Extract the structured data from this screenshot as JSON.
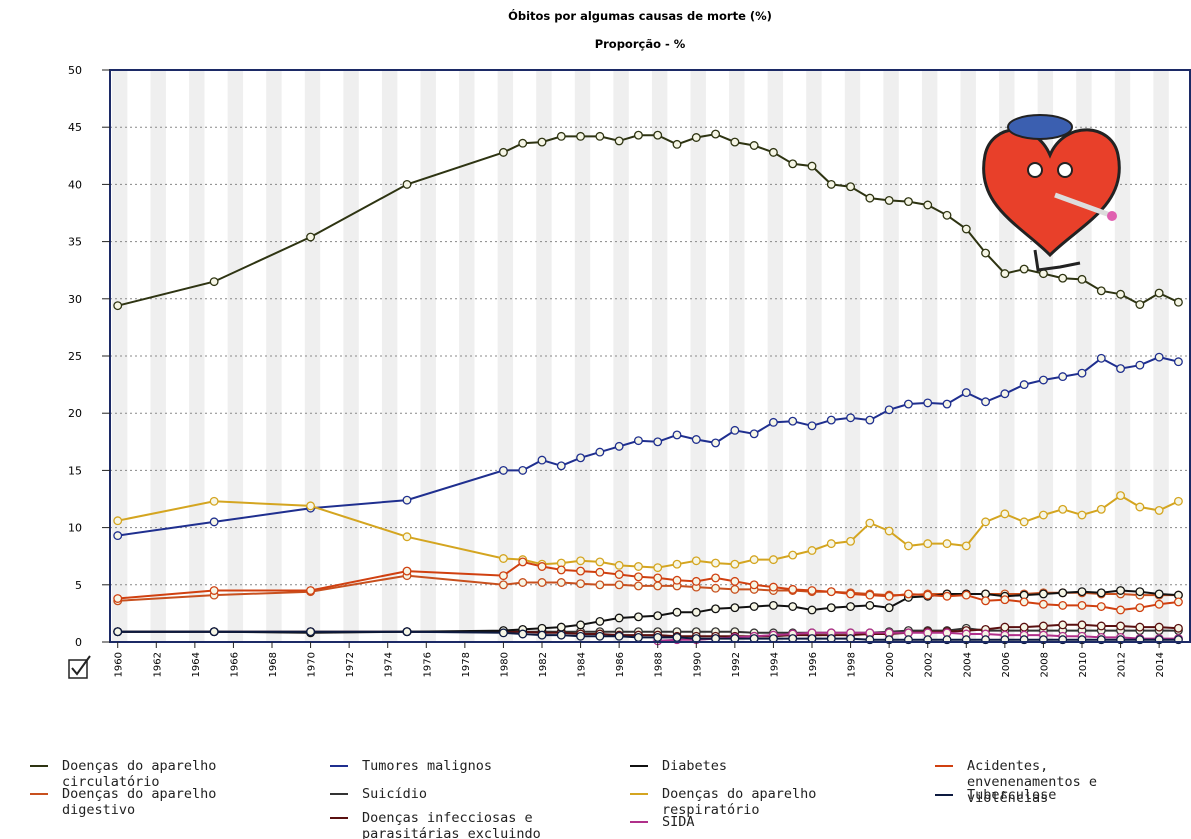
{
  "chart_data": {
    "type": "line",
    "title": "Óbitos por algumas causas de morte (%)",
    "subtitle": "Proporção - %",
    "x": [
      1960,
      1965,
      1970,
      1975,
      1980,
      1981,
      1982,
      1983,
      1984,
      1985,
      1986,
      1987,
      1988,
      1989,
      1990,
      1991,
      1992,
      1993,
      1994,
      1995,
      1996,
      1997,
      1998,
      1999,
      2000,
      2001,
      2002,
      2003,
      2004,
      2005,
      2006,
      2007,
      2008,
      2009,
      2010,
      2011,
      2012,
      2013,
      2014,
      2015
    ],
    "xlim": [
      1959.6,
      2015.6
    ],
    "xticks": [
      1960,
      1962,
      1964,
      1966,
      1968,
      1970,
      1972,
      1974,
      1976,
      1978,
      1980,
      1982,
      1984,
      1986,
      1988,
      1990,
      1992,
      1994,
      1996,
      1998,
      2000,
      2002,
      2004,
      2006,
      2008,
      2010,
      2012,
      2014
    ],
    "ylim": [
      0,
      50
    ],
    "yticks": [
      0,
      5,
      10,
      15,
      20,
      25,
      30,
      35,
      40,
      45,
      50
    ],
    "grid": true,
    "series": [
      {
        "name": "Doenças do aparelho circulatório",
        "color": "#2e3412",
        "values": [
          29.4,
          31.5,
          35.4,
          40.0,
          42.8,
          43.6,
          43.7,
          44.2,
          44.2,
          44.2,
          43.8,
          44.3,
          44.3,
          43.5,
          44.1,
          44.4,
          43.7,
          43.4,
          42.8,
          41.8,
          41.6,
          40.0,
          39.8,
          38.8,
          38.6,
          38.5,
          38.2,
          37.3,
          36.1,
          34.0,
          32.2,
          32.6,
          32.2,
          31.8,
          31.7,
          30.7,
          30.4,
          29.5,
          30.5,
          29.7
        ]
      },
      {
        "name": "Doenças do aparelho digestivo",
        "color": "#c8501e",
        "values": [
          3.6,
          4.1,
          4.4,
          5.8,
          5.0,
          5.2,
          5.2,
          5.2,
          5.1,
          5.0,
          5.0,
          4.9,
          4.9,
          4.9,
          4.8,
          4.7,
          4.6,
          4.6,
          4.5,
          4.5,
          4.4,
          4.4,
          4.3,
          4.2,
          4.1,
          4.1,
          4.2,
          4.2,
          4.2,
          4.2,
          4.2,
          4.2,
          4.3,
          4.3,
          4.3,
          4.2,
          4.2,
          4.1,
          4.1,
          4.1
        ]
      },
      {
        "name": "Tumores malignos",
        "color": "#1f2f8f",
        "values": [
          9.3,
          10.5,
          11.7,
          12.4,
          15.0,
          15.0,
          15.9,
          15.4,
          16.1,
          16.6,
          17.1,
          17.6,
          17.5,
          18.1,
          17.7,
          17.4,
          18.5,
          18.2,
          19.2,
          19.3,
          18.9,
          19.4,
          19.6,
          19.4,
          20.3,
          20.8,
          20.9,
          20.8,
          21.8,
          21.0,
          21.7,
          22.5,
          22.9,
          23.2,
          23.5,
          24.8,
          23.9,
          24.2,
          24.9,
          24.5
        ]
      },
      {
        "name": "Suicídio",
        "color": "#333333",
        "values": [
          0.9,
          0.9,
          0.9,
          0.9,
          0.9,
          0.9,
          0.9,
          0.9,
          0.9,
          0.9,
          0.9,
          0.9,
          0.9,
          0.9,
          0.9,
          0.9,
          0.9,
          0.8,
          0.8,
          0.8,
          0.8,
          0.8,
          0.8,
          0.8,
          0.9,
          1.0,
          1.0,
          1.0,
          1.2,
          1.0,
          1.0,
          1.0,
          1.0,
          1.0,
          1.0,
          1.0,
          1.0,
          1.0,
          1.0,
          1.0
        ]
      },
      {
        "name": "Doenças infecciosas e parasitárias excluindo SIDA e tuberculose",
        "color": "#5a1010",
        "values": [
          0.9,
          0.9,
          0.9,
          0.9,
          0.9,
          0.9,
          0.8,
          0.8,
          0.7,
          0.7,
          0.6,
          0.6,
          0.6,
          0.5,
          0.5,
          0.5,
          0.5,
          0.5,
          0.5,
          0.6,
          0.6,
          0.6,
          0.6,
          0.7,
          0.7,
          0.8,
          0.9,
          0.9,
          1.0,
          1.1,
          1.3,
          1.3,
          1.4,
          1.5,
          1.5,
          1.4,
          1.4,
          1.3,
          1.3,
          1.2
        ]
      },
      {
        "name": "Diabetes",
        "color": "#111111",
        "values": [
          0.9,
          0.9,
          0.8,
          0.9,
          1.0,
          1.1,
          1.2,
          1.3,
          1.5,
          1.8,
          2.1,
          2.2,
          2.3,
          2.6,
          2.6,
          2.9,
          3.0,
          3.1,
          3.2,
          3.1,
          2.8,
          3.0,
          3.1,
          3.2,
          3.0,
          3.9,
          4.0,
          4.2,
          4.2,
          4.2,
          4.0,
          4.1,
          4.2,
          4.3,
          4.4,
          4.3,
          4.5,
          4.4,
          4.2,
          4.1
        ]
      },
      {
        "name": "Doenças do aparelho respiratório",
        "color": "#d4a520",
        "values": [
          10.6,
          12.3,
          11.9,
          9.2,
          7.3,
          7.2,
          6.8,
          6.9,
          7.1,
          7.0,
          6.7,
          6.6,
          6.5,
          6.8,
          7.1,
          6.9,
          6.8,
          7.2,
          7.2,
          7.6,
          8.0,
          8.6,
          8.8,
          10.4,
          9.7,
          8.4,
          8.6,
          8.6,
          8.4,
          10.5,
          11.2,
          10.5,
          11.1,
          11.6,
          11.1,
          11.6,
          12.8,
          11.8,
          11.5,
          12.3
        ]
      },
      {
        "name": "SIDA",
        "color": "#b0308a",
        "values": [
          null,
          null,
          null,
          null,
          null,
          null,
          null,
          null,
          null,
          null,
          null,
          null,
          0.1,
          0.2,
          0.2,
          0.3,
          0.4,
          0.5,
          0.6,
          0.7,
          0.8,
          0.8,
          0.8,
          0.8,
          0.8,
          0.8,
          0.8,
          0.8,
          0.7,
          0.7,
          0.6,
          0.6,
          0.6,
          0.5,
          0.5,
          0.4,
          0.4,
          0.3,
          0.3,
          0.3
        ]
      },
      {
        "name": "Acidentes, envenenamentos e violências",
        "color": "#d04010",
        "values": [
          3.8,
          4.5,
          4.5,
          6.2,
          5.8,
          7.0,
          6.6,
          6.3,
          6.2,
          6.1,
          5.9,
          5.7,
          5.6,
          5.4,
          5.3,
          5.6,
          5.3,
          5.0,
          4.8,
          4.6,
          4.5,
          4.4,
          4.2,
          4.1,
          4.0,
          4.2,
          4.1,
          4.0,
          4.1,
          3.6,
          3.7,
          3.5,
          3.3,
          3.2,
          3.2,
          3.1,
          2.8,
          3.0,
          3.3,
          3.5
        ]
      },
      {
        "name": "Tuberculose",
        "color": "#0d1a40",
        "values": [
          0.9,
          0.9,
          0.9,
          0.9,
          0.8,
          0.7,
          0.6,
          0.6,
          0.5,
          0.5,
          0.5,
          0.4,
          0.4,
          0.4,
          0.3,
          0.3,
          0.3,
          0.3,
          0.3,
          0.3,
          0.3,
          0.3,
          0.3,
          0.2,
          0.2,
          0.2,
          0.2,
          0.2,
          0.2,
          0.2,
          0.2,
          0.2,
          0.2,
          0.2,
          0.2,
          0.2,
          0.2,
          0.2,
          0.2,
          0.2
        ]
      }
    ]
  }
}
